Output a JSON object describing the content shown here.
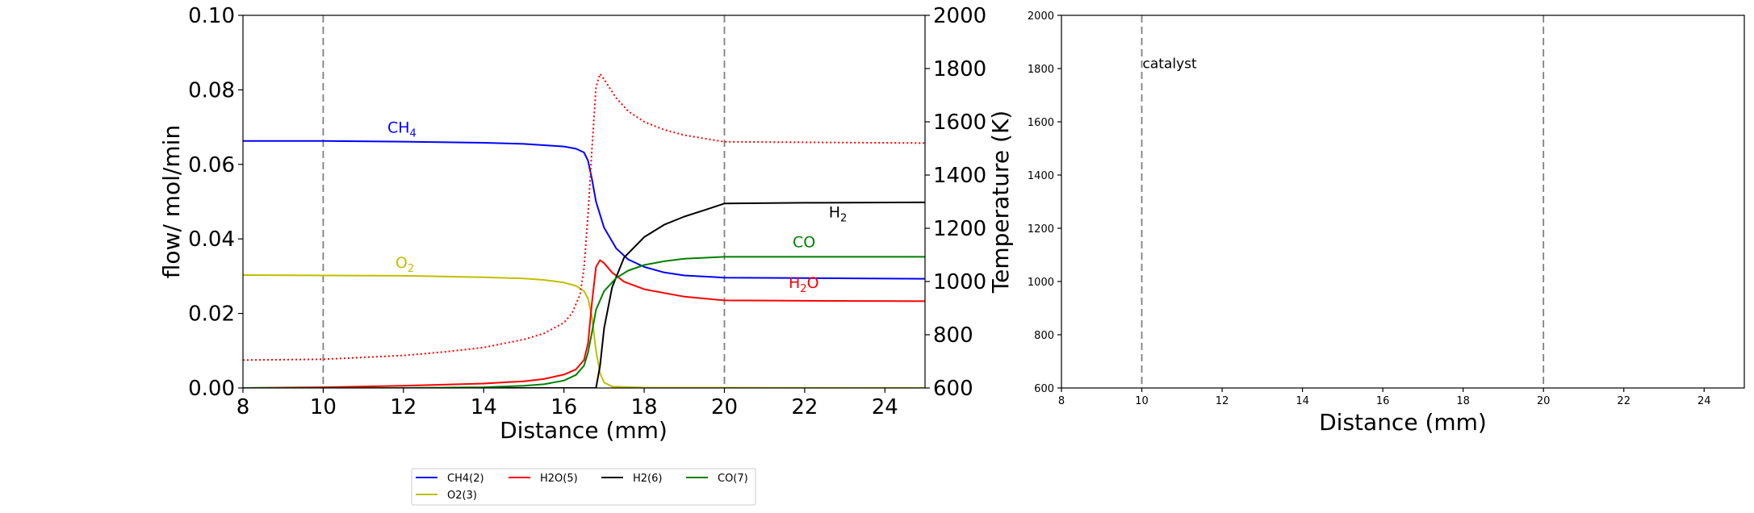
{
  "chart_data": [
    {
      "type": "line",
      "xlabel": "Distance (mm)",
      "ylabel": "flow/ mol/min",
      "y2label": "Temperature (K)",
      "xlim": [
        8,
        25
      ],
      "ylim": [
        0,
        0.1
      ],
      "y2lim": [
        600,
        2000
      ],
      "xticks": [
        "8",
        "10",
        "12",
        "14",
        "16",
        "18",
        "20",
        "22",
        "24"
      ],
      "yticks": [
        "0.00",
        "0.02",
        "0.04",
        "0.06",
        "0.08",
        "0.10"
      ],
      "y2ticks": [
        "600",
        "800",
        "1000",
        "1200",
        "1400",
        "1600",
        "1800",
        "2000"
      ],
      "grid": false,
      "vlines": [
        10,
        20
      ],
      "colors": {
        "CH4": "#0000ff",
        "H2O": "#ff0000",
        "H2": "#000000",
        "CO": "#008000",
        "O2": "#bfbf00",
        "T": "#ff0000"
      },
      "series": [
        {
          "name": "CH4(2)",
          "label": "CH4",
          "color": "#0000ff",
          "x": [
            8,
            10,
            12,
            14,
            15,
            16,
            16.3,
            16.5,
            16.6,
            16.7,
            16.8,
            17,
            17.3,
            17.6,
            18,
            18.5,
            19,
            20,
            22,
            25
          ],
          "y": [
            0.0663,
            0.0663,
            0.0661,
            0.0658,
            0.0655,
            0.0648,
            0.0642,
            0.0632,
            0.061,
            0.056,
            0.05,
            0.043,
            0.0375,
            0.0345,
            0.0325,
            0.031,
            0.0302,
            0.0296,
            0.0295,
            0.0293
          ]
        },
        {
          "name": "O2(3)",
          "label": "O2",
          "color": "#bfbf00",
          "x": [
            8,
            10,
            12,
            14,
            15,
            15.5,
            16,
            16.3,
            16.5,
            16.6,
            16.7,
            16.8,
            16.9,
            17,
            17.2,
            18,
            25
          ],
          "y": [
            0.0303,
            0.0302,
            0.0301,
            0.0297,
            0.0294,
            0.029,
            0.0283,
            0.0274,
            0.026,
            0.024,
            0.019,
            0.01,
            0.004,
            0.0015,
            0.0004,
            0.0001,
            0.0
          ]
        },
        {
          "name": "H2O(5)",
          "label": "H2O",
          "color": "#ff0000",
          "x": [
            8,
            10,
            12,
            14,
            15,
            15.5,
            16,
            16.3,
            16.5,
            16.6,
            16.7,
            16.8,
            16.9,
            17,
            17.2,
            17.5,
            18,
            19,
            20,
            22,
            25
          ],
          "y": [
            0.0,
            0.0002,
            0.0006,
            0.0012,
            0.0018,
            0.0024,
            0.0036,
            0.005,
            0.0075,
            0.012,
            0.023,
            0.0325,
            0.0343,
            0.0335,
            0.031,
            0.0285,
            0.0265,
            0.0245,
            0.0235,
            0.0234,
            0.0233
          ]
        },
        {
          "name": "H2(6)",
          "label": "H2",
          "color": "#000000",
          "x": [
            8,
            16.8,
            16.9,
            17,
            17.2,
            17.5,
            18,
            18.5,
            19,
            19.5,
            20,
            22,
            25
          ],
          "y": [
            0.0,
            0.0,
            0.006,
            0.016,
            0.027,
            0.035,
            0.0405,
            0.0438,
            0.046,
            0.0477,
            0.0495,
            0.0497,
            0.0498
          ]
        },
        {
          "name": "CO(7)",
          "label": "CO",
          "color": "#008000",
          "x": [
            8,
            12,
            14,
            15,
            15.5,
            16,
            16.3,
            16.5,
            16.6,
            16.7,
            16.8,
            17,
            17.3,
            17.6,
            18,
            18.5,
            19,
            20,
            25
          ],
          "y": [
            0.0,
            0.0,
            0.0002,
            0.0006,
            0.001,
            0.002,
            0.0035,
            0.006,
            0.0095,
            0.015,
            0.021,
            0.026,
            0.0295,
            0.0315,
            0.033,
            0.034,
            0.0347,
            0.0352,
            0.0352
          ]
        },
        {
          "name": "T",
          "color": "#ff0000",
          "style": "dotted",
          "axis": "y2",
          "x": [
            8,
            10,
            12,
            13,
            14,
            15,
            15.5,
            16,
            16.2,
            16.4,
            16.5,
            16.6,
            16.7,
            16.8,
            16.9,
            17,
            17.3,
            17.6,
            18,
            18.5,
            19,
            20,
            25
          ],
          "y": [
            705,
            708,
            722,
            735,
            752,
            782,
            805,
            845,
            880,
            950,
            1050,
            1250,
            1500,
            1730,
            1780,
            1760,
            1690,
            1640,
            1600,
            1570,
            1550,
            1525,
            1520
          ]
        }
      ],
      "labels": [
        {
          "text": "CH",
          "sub": "4",
          "x": 11.6,
          "y": 0.0685,
          "color": "#0000ff"
        },
        {
          "text": "O",
          "sub": "2",
          "x": 11.8,
          "y": 0.0322,
          "color": "#bfbf00"
        },
        {
          "text": "H",
          "sub": "2",
          "x": 22.6,
          "y": 0.0458,
          "color": "#000000"
        },
        {
          "text": "CO",
          "sub": "",
          "x": 21.7,
          "y": 0.0378,
          "color": "#008000"
        },
        {
          "text": "H",
          "sub": "2",
          "tail": "O",
          "x": 21.6,
          "y": 0.0268,
          "color": "#ff0000"
        }
      ],
      "legend": {
        "placement": "below",
        "entries": [
          "CH4(2)",
          "H2O(5)",
          "H2(6)",
          "CO(7)",
          "O2(3)"
        ]
      }
    },
    {
      "type": "line",
      "xlabel": "Distance (mm)",
      "xlim": [
        8,
        25
      ],
      "ylim": [
        600,
        2000
      ],
      "xticks": [
        "8",
        "10",
        "12",
        "14",
        "16",
        "18",
        "20",
        "22",
        "24"
      ],
      "yticks": [
        "600",
        "800",
        "1000",
        "1200",
        "1400",
        "1600",
        "1800",
        "2000"
      ],
      "grid": false,
      "vlines": [
        10,
        20
      ],
      "annotation": {
        "text": "catalyst",
        "x": 10,
        "y": 1820
      }
    }
  ]
}
